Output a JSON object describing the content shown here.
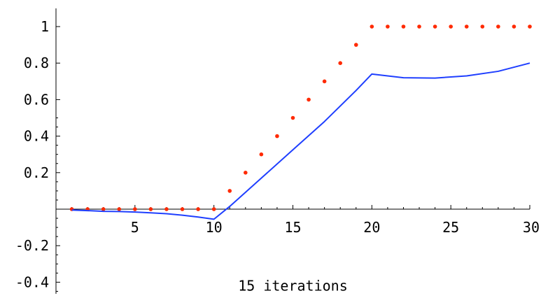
{
  "chart_data": {
    "type": "line",
    "title": "",
    "xlabel": "",
    "ylabel": "",
    "xlim": [
      0,
      30
    ],
    "ylim": [
      -0.48,
      1.1
    ],
    "grid": false,
    "legend": "none",
    "x_ticks": [
      {
        "value": 5,
        "label": "5"
      },
      {
        "value": 10,
        "label": "10"
      },
      {
        "value": 15,
        "label": "15"
      },
      {
        "value": 20,
        "label": "20"
      },
      {
        "value": 25,
        "label": "25"
      },
      {
        "value": 30,
        "label": "30"
      }
    ],
    "y_ticks": [
      {
        "value": -0.4,
        "label": "-0.4"
      },
      {
        "value": -0.2,
        "label": "-0.2"
      },
      {
        "value": 0.2,
        "label": "0.2"
      },
      {
        "value": 0.4,
        "label": "0.4"
      },
      {
        "value": 0.6,
        "label": "0.6"
      },
      {
        "value": 0.8,
        "label": "0.8"
      },
      {
        "value": 1,
        "label": "1"
      }
    ],
    "annotation": {
      "text": "15 iterations",
      "x": 15,
      "y": -0.42
    },
    "series": [
      {
        "kind": "scatter",
        "color": "#ff2a00",
        "points": [
          [
            1,
            0
          ],
          [
            2,
            0
          ],
          [
            3,
            0
          ],
          [
            4,
            0
          ],
          [
            5,
            0
          ],
          [
            6,
            0
          ],
          [
            7,
            0
          ],
          [
            8,
            0
          ],
          [
            9,
            0
          ],
          [
            10,
            0
          ],
          [
            11,
            0.1
          ],
          [
            12,
            0.2
          ],
          [
            13,
            0.3
          ],
          [
            14,
            0.4
          ],
          [
            15,
            0.5
          ],
          [
            16,
            0.6
          ],
          [
            17,
            0.7
          ],
          [
            18,
            0.8
          ],
          [
            19,
            0.9
          ],
          [
            20,
            1
          ],
          [
            21,
            1
          ],
          [
            22,
            1
          ],
          [
            23,
            1
          ],
          [
            24,
            1
          ],
          [
            25,
            1
          ],
          [
            26,
            1
          ],
          [
            27,
            1
          ],
          [
            28,
            1
          ],
          [
            29,
            1
          ],
          [
            30,
            1
          ]
        ]
      },
      {
        "kind": "line",
        "color": "#1f3fff",
        "points": [
          [
            1,
            -0.005
          ],
          [
            2,
            -0.008
          ],
          [
            3,
            -0.012
          ],
          [
            4,
            -0.013
          ],
          [
            5,
            -0.016
          ],
          [
            6,
            -0.02
          ],
          [
            7,
            -0.025
          ],
          [
            8,
            -0.033
          ],
          [
            9,
            -0.043
          ],
          [
            10,
            -0.055
          ],
          [
            11,
            0.015
          ],
          [
            13,
            0.17
          ],
          [
            15,
            0.325
          ],
          [
            17,
            0.48
          ],
          [
            19,
            0.65
          ],
          [
            20,
            0.74
          ],
          [
            22,
            0.72
          ],
          [
            24,
            0.718
          ],
          [
            26,
            0.73
          ],
          [
            28,
            0.755
          ],
          [
            30,
            0.8
          ]
        ]
      }
    ]
  }
}
